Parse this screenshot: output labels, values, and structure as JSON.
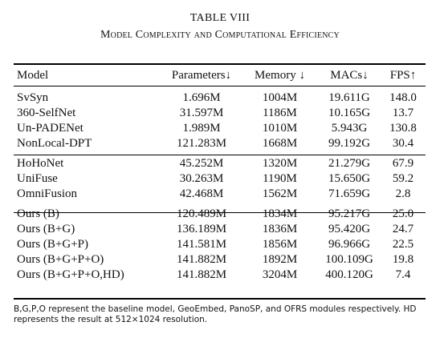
{
  "table": {
    "label": "TABLE VIII",
    "caption": "Model Complexity and Computational Efficiency",
    "headers": [
      "Model",
      "Parameters↓",
      "Memory ↓",
      "MACs↓",
      "FPS↑"
    ],
    "groups": [
      [
        [
          "SvSyn",
          "1.696M",
          "1004M",
          "19.611G",
          "148.0"
        ],
        [
          "360-SelfNet",
          "31.597M",
          "1186M",
          "10.165G",
          "13.7"
        ],
        [
          "Un-PADENet",
          "1.989M",
          "1010M",
          "5.943G",
          "130.8"
        ],
        [
          "NonLocal-DPT",
          "121.283M",
          "1668M",
          "99.192G",
          "30.4"
        ]
      ],
      [
        [
          "HoHoNet",
          "45.252M",
          "1320M",
          "21.279G",
          "67.9"
        ],
        [
          "UniFuse",
          "30.263M",
          "1190M",
          "15.650G",
          "59.2"
        ],
        [
          "OmniFusion",
          "42.468M",
          "1562M",
          "71.659G",
          "2.8"
        ]
      ],
      [
        [
          "Ours (B)",
          "120.489M",
          "1834M",
          "95.217G",
          "25.0"
        ],
        [
          "Ours (B+G)",
          "136.189M",
          "1836M",
          "95.420G",
          "24.7"
        ],
        [
          "Ours (B+G+P)",
          "141.581M",
          "1856M",
          "96.966G",
          "22.5"
        ],
        [
          "Ours (B+G+P+O)",
          "141.882M",
          "1892M",
          "100.109G",
          "19.8"
        ],
        [
          "Ours (B+G+P+O,HD)",
          "141.882M",
          "3204M",
          "400.120G",
          "7.4"
        ]
      ]
    ],
    "note": "B,G,P,O represent the baseline model, GeoEmbed, PanoSP, and OFRS modules respectively. HD represents the result at 512×1024 resolution."
  }
}
